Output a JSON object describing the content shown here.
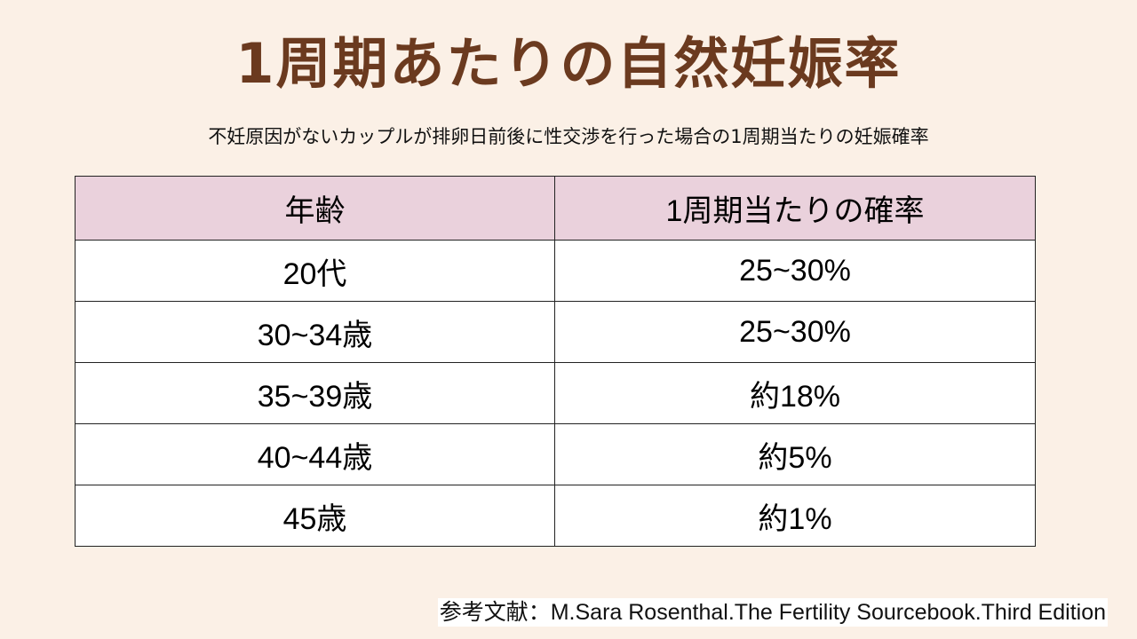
{
  "title": "1周期あたりの自然妊娠率",
  "subtitle": "不妊原因がないカップルが排卵日前後に性交渉を行った場合の1周期当たりの妊娠確率",
  "table": {
    "headers": [
      "年齢",
      "1周期当たりの確率"
    ],
    "rows": [
      [
        "20代",
        "25~30%"
      ],
      [
        "30~34歳",
        "25~30%"
      ],
      [
        "35~39歳",
        "約18%"
      ],
      [
        "40~44歳",
        "約5%"
      ],
      [
        "45歳",
        "約1%"
      ]
    ]
  },
  "reference": "参考文献：M.Sara Rosenthal.The Fertility Sourcebook.Third Edition",
  "colors": {
    "background": "#fbf0e6",
    "title": "#6b3a1f",
    "header_fill": "#ead1dc"
  }
}
